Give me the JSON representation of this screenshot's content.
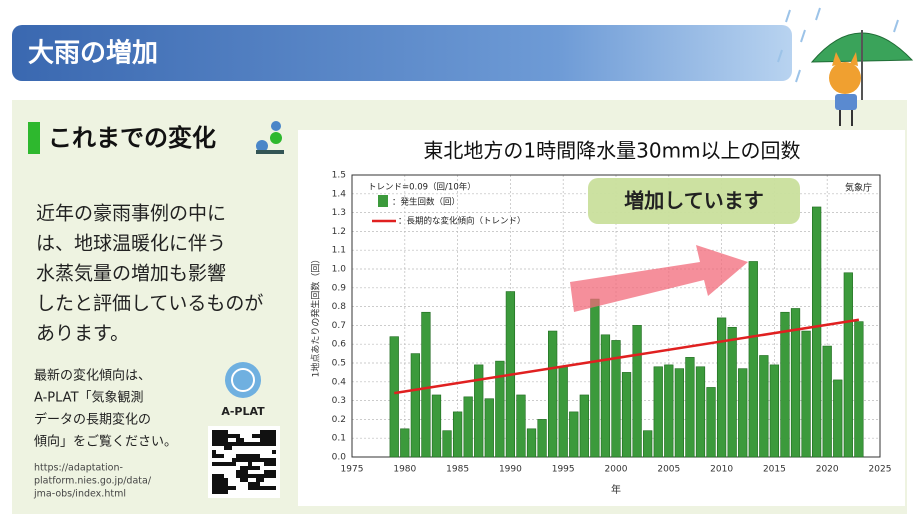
{
  "header": {
    "title": "大雨の増加"
  },
  "section": {
    "heading": "これまでの変化",
    "body": [
      "近年の豪雨事例の中に",
      "は、地球温暖化に伴う",
      "水蒸気量の増加も影響",
      "したと評価しているものが",
      "あります。"
    ],
    "note": [
      "最新の変化傾向は、",
      "A-PLAT「気象観測",
      "データの長期変化の",
      "傾向」をご覧ください。"
    ],
    "url": [
      "https://adaptation-",
      "platform.nies.go.jp/data/",
      "jma-obs/index.html"
    ],
    "logo_label": "A-PLAT"
  },
  "chart_data": {
    "type": "bar",
    "title": "東北地方の1時間降水量30mm以上の回数",
    "x": [
      1979,
      1980,
      1981,
      1982,
      1983,
      1984,
      1985,
      1986,
      1987,
      1988,
      1989,
      1990,
      1991,
      1992,
      1993,
      1994,
      1995,
      1996,
      1997,
      1998,
      1999,
      2000,
      2001,
      2002,
      2003,
      2004,
      2005,
      2006,
      2007,
      2008,
      2009,
      2010,
      2011,
      2012,
      2013,
      2014,
      2015,
      2016,
      2017,
      2018,
      2019,
      2020,
      2021,
      2022,
      2023
    ],
    "series": [
      {
        "name": "：発生回数（回）",
        "color": "#3c9a3c",
        "values": [
          0.64,
          0.15,
          0.55,
          0.77,
          0.33,
          0.14,
          0.24,
          0.32,
          0.49,
          0.31,
          0.51,
          0.88,
          0.33,
          0.15,
          0.2,
          0.67,
          0.48,
          0.24,
          0.33,
          0.84,
          0.65,
          0.62,
          0.45,
          0.7,
          0.14,
          0.48,
          0.49,
          0.47,
          0.53,
          0.48,
          0.37,
          0.74,
          0.69,
          0.47,
          1.04,
          0.54,
          0.49,
          0.77,
          0.79,
          0.67,
          1.33,
          0.59,
          0.41,
          0.98,
          0.72
        ]
      }
    ],
    "trend": {
      "name": "：長期的な変化傾向（トレンド）",
      "color": "#e02020",
      "x": [
        1979,
        2023
      ],
      "values": [
        0.34,
        0.73
      ]
    },
    "trend_label": "トレンド=0.09（回/10年）",
    "source": "気象庁",
    "callout": "増加しています",
    "ylabel": "1地点あたりの発生回数（回）",
    "xlabel": "年",
    "xlim": [
      1975,
      2025
    ],
    "xticks": [
      1975,
      1980,
      1985,
      1990,
      1995,
      2000,
      2005,
      2010,
      2015,
      2020,
      2025
    ],
    "ylim": [
      0,
      1.5
    ],
    "yticks": [
      {
        "value": 0,
        "label": "0.0"
      },
      0.1,
      0.2,
      0.3,
      0.4,
      0.5,
      0.6,
      0.7,
      0.8,
      0.9,
      {
        "value": 1,
        "label": "1.0"
      },
      1.1,
      1.2,
      1.3,
      1.4,
      1.5
    ],
    "grid": true
  }
}
